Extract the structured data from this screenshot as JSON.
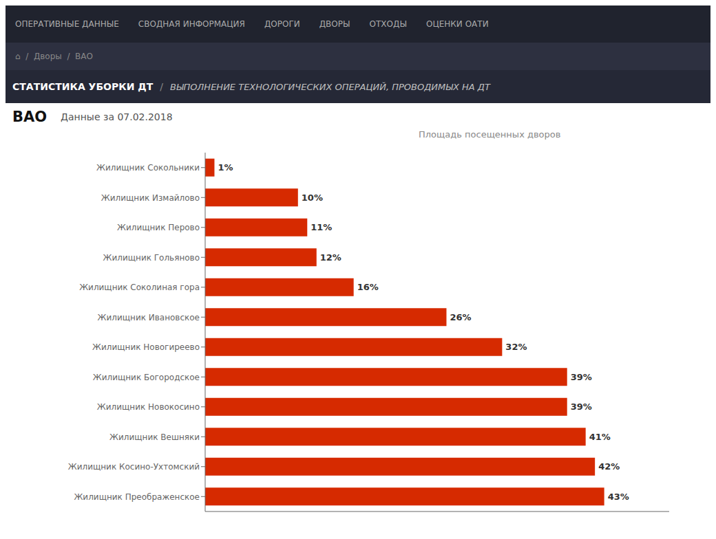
{
  "chart_data": {
    "type": "bar",
    "orientation": "horizontal",
    "title": "СТАТИСТИКА УБОРКИ ДТ",
    "subtitle": "ВЫПОЛНЕНИЕ ТЕХНОЛОГИЧЕСКИХ ОПЕРАЦИЙ, ПРОВОДИМЫХ НА ДТ",
    "x_label": "Площадь посещенных дворов",
    "annotations": [
      "ОПЕРАТИВНЫЕ ДАННЫЕ",
      "СВОДНАЯ ИНФОРМАЦИЯ",
      "ДОРОГИ",
      "ДВОРЫ",
      "ОТХОДЫ",
      "ОЦЕНКИ ОАТИ",
      "⌂  /  Дворы  /  ВАО",
      "/",
      "ВАО",
      "Данные за 07.02.2018"
    ],
    "categories": [
      "Жилищник Сокольники",
      "Жилищник Измайлово",
      "Жилищник Перово",
      "Жилищник Гольяново",
      "Жилищник Соколиная гора",
      "Жилищник Ивановское",
      "Жилищник Новогиреево",
      "Жилищник Богородское",
      "Жилищник Новокосино",
      "Жилищник Вешняки",
      "Жилищник Косино-Ухтомский",
      "Жилищник Преображенское"
    ],
    "values": [
      1,
      10,
      11,
      12,
      16,
      26,
      32,
      39,
      39,
      41,
      42,
      43
    ],
    "value_labels": [
      "1%",
      "10%",
      "11%",
      "12%",
      "16%",
      "26%",
      "32%",
      "39%",
      "39%",
      "41%",
      "42%",
      "43%"
    ],
    "data_labels": true,
    "color": "#d62a00",
    "xlim": [
      0,
      50
    ],
    "tick_labels": "y",
    "grid": false
  }
}
